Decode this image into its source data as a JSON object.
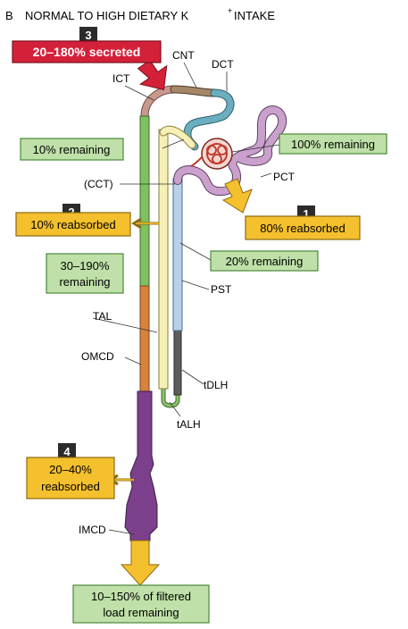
{
  "panel": {
    "letter": "B",
    "title_main": "NORMAL TO HIGH DIETARY K",
    "title_sup": "+",
    "title_end": " INTAKE"
  },
  "colors": {
    "green_box": "#bfe0a8",
    "green_border": "#4a8a3a",
    "orange_box": "#f5c02e",
    "orange_border": "#8a6a10",
    "red_box": "#d4213a",
    "red_border": "#7a0f1c",
    "badge": "#2b2b2b",
    "ict": "#c8978e",
    "cnt": "#a58768",
    "dct": "#6aaec0",
    "pct": "#c9a1cc",
    "pst": "#b9d2ea",
    "tdlh": "#5c5c5c",
    "talh": "#8cc06b",
    "tal": "#f7f0b6",
    "ccd": "#7fc062",
    "omcd": "#d8823c",
    "imcd": "#7b3f8c",
    "glom": "#c0392b"
  },
  "steps": [
    {
      "number": "1",
      "text": "80% reabsorbed"
    },
    {
      "number": "2",
      "text": "10% reabsorbed"
    },
    {
      "number": "3",
      "text": "20–180% secreted"
    },
    {
      "number": "4",
      "text": "20–40%",
      "text2": "reabsorbed"
    }
  ],
  "remaining": {
    "r100": "100% remaining",
    "r20": "20% remaining",
    "r10": "10% remaining",
    "r30_line1": "30–190%",
    "r30_line2": "remaining",
    "final_line1": "10–150% of filtered",
    "final_line2": "load remaining"
  },
  "segments": {
    "cnt": "CNT",
    "dct": "DCT",
    "ict": "ICT",
    "pct": "PCT",
    "cct": "(CCT)",
    "pst": "PST",
    "tal": "TAL",
    "omcd": "OMCD",
    "tdlh": "tDLH",
    "talh": "tALH",
    "imcd": "IMCD"
  }
}
